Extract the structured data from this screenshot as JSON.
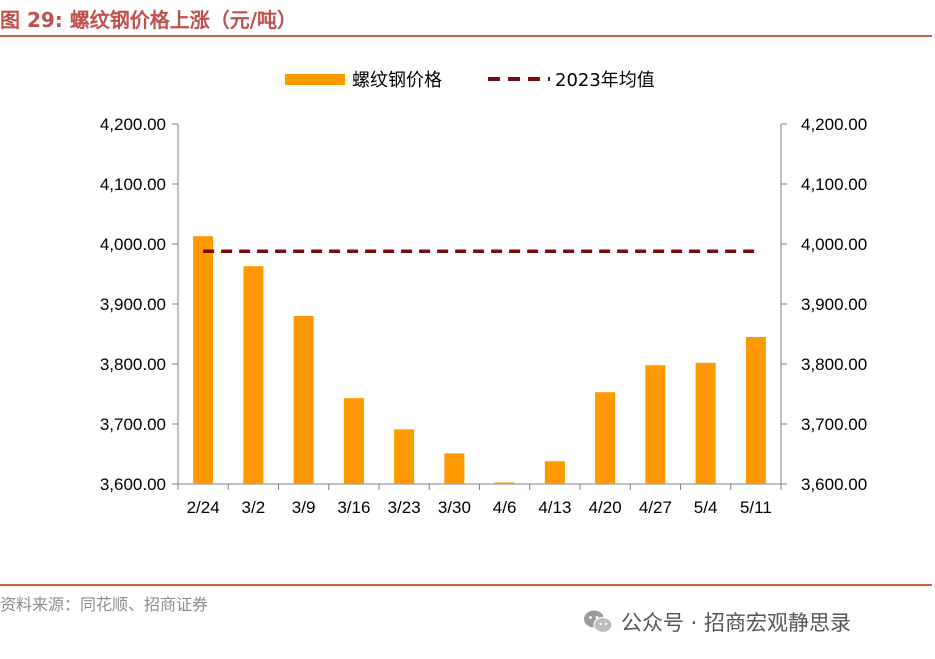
{
  "header": {
    "title": "图 29:  螺纹钢价格上涨（元/吨）"
  },
  "footer": {
    "source": "资料来源：同花顺、招商证券",
    "watermark": "公众号 · 招商宏观静思录"
  },
  "icons": {
    "watermark_icon": "wechat-icon"
  },
  "colors": {
    "title": "#C0504D",
    "bar": "#FF9900",
    "avg_line": "#7B0C0C",
    "rule": "#C8613C"
  },
  "chart_data": {
    "type": "bar",
    "categories": [
      "2/24",
      "3/2",
      "3/9",
      "3/16",
      "3/23",
      "3/30",
      "4/6",
      "4/13",
      "4/20",
      "4/27",
      "5/4",
      "5/11"
    ],
    "series": [
      {
        "name": "螺纹钢价格",
        "type": "bar",
        "values": [
          4013,
          3963,
          3880,
          3743,
          3691,
          3651,
          3598,
          3638,
          3753,
          3798,
          3802,
          3845
        ]
      },
      {
        "name": "2023年均值",
        "type": "line",
        "style": "dashed",
        "values": [
          3988,
          3988,
          3988,
          3988,
          3988,
          3988,
          3988,
          3988,
          3988,
          3988,
          3988,
          3988
        ]
      }
    ],
    "yticks": [
      "3,600.00",
      "3,700.00",
      "3,800.00",
      "3,900.00",
      "4,000.00",
      "4,100.00",
      "4,200.00"
    ],
    "ylim": [
      3600,
      4200
    ],
    "secondary_axis": true,
    "grid": false,
    "legend_position": "top-center"
  }
}
